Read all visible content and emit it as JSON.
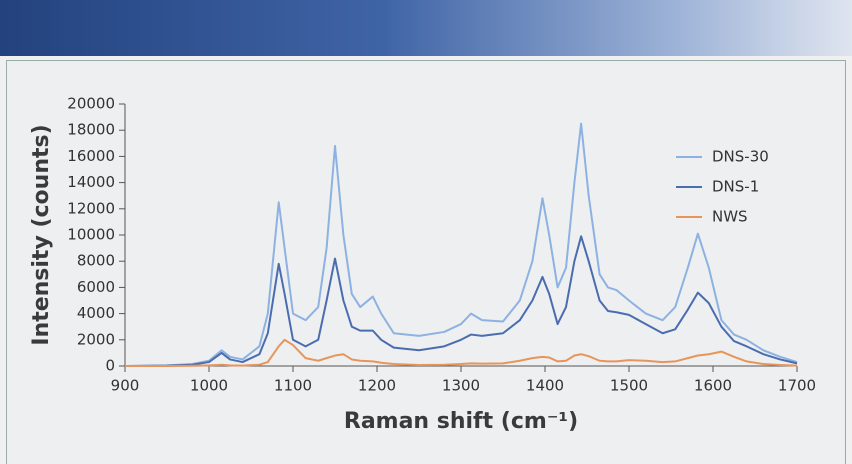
{
  "chart_data": {
    "type": "line",
    "x_label": "Raman shift (cm⁻¹)",
    "y_label": "Intensity (counts)",
    "x": [
      900,
      950,
      980,
      1000,
      1015,
      1025,
      1040,
      1060,
      1070,
      1083,
      1090,
      1100,
      1115,
      1130,
      1140,
      1150,
      1160,
      1170,
      1180,
      1195,
      1205,
      1220,
      1250,
      1280,
      1300,
      1312,
      1325,
      1350,
      1370,
      1385,
      1397,
      1405,
      1415,
      1425,
      1435,
      1443,
      1452,
      1465,
      1475,
      1485,
      1500,
      1520,
      1540,
      1555,
      1570,
      1582,
      1595,
      1610,
      1625,
      1640,
      1660,
      1680,
      1700
    ],
    "series": [
      {
        "name": "DNS-30",
        "color": "#8db2e2",
        "values": [
          0,
          50,
          150,
          400,
          1200,
          700,
          500,
          1500,
          4000,
          12500,
          9000,
          4000,
          3500,
          4500,
          9000,
          16800,
          10000,
          5500,
          4500,
          5300,
          4000,
          2500,
          2300,
          2600,
          3200,
          4000,
          3500,
          3400,
          5000,
          8000,
          12800,
          10000,
          6000,
          7500,
          14000,
          18500,
          13000,
          7000,
          6000,
          5800,
          5000,
          4000,
          3500,
          4500,
          7500,
          10100,
          7500,
          3500,
          2400,
          2000,
          1200,
          700,
          300
        ]
      },
      {
        "name": "DNS-1",
        "color": "#4a6db0",
        "values": [
          0,
          30,
          100,
          300,
          1000,
          500,
          300,
          900,
          2500,
          7800,
          5500,
          2000,
          1500,
          2000,
          5000,
          8200,
          5000,
          3000,
          2700,
          2700,
          2000,
          1400,
          1200,
          1500,
          2000,
          2400,
          2300,
          2500,
          3500,
          5000,
          6800,
          5500,
          3200,
          4500,
          8000,
          9900,
          8000,
          5000,
          4200,
          4100,
          3900,
          3200,
          2500,
          2800,
          4300,
          5600,
          4800,
          3000,
          1900,
          1500,
          900,
          500,
          200
        ]
      },
      {
        "name": "NWS",
        "color": "#e8955a",
        "values": [
          0,
          0,
          20,
          50,
          100,
          50,
          30,
          100,
          300,
          1500,
          2000,
          1600,
          600,
          400,
          600,
          800,
          900,
          500,
          400,
          350,
          250,
          150,
          80,
          100,
          150,
          200,
          180,
          200,
          400,
          600,
          700,
          650,
          350,
          400,
          800,
          900,
          750,
          400,
          350,
          350,
          450,
          400,
          300,
          350,
          600,
          800,
          900,
          1100,
          700,
          350,
          150,
          80,
          30
        ]
      }
    ],
    "xlim": [
      900,
      1700
    ],
    "xticks": [
      900,
      1000,
      1100,
      1200,
      1300,
      1400,
      1500,
      1600,
      1700
    ],
    "ylim": [
      0,
      20000
    ],
    "yticks": [
      0,
      2000,
      4000,
      6000,
      8000,
      10000,
      12000,
      14000,
      16000,
      18000,
      20000
    ],
    "legend": "upper right"
  }
}
